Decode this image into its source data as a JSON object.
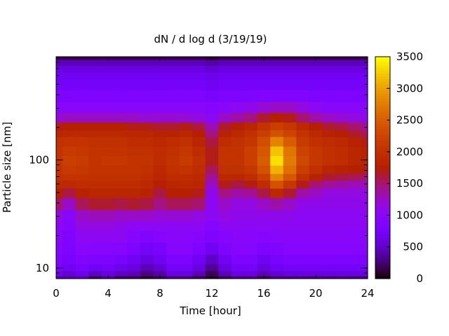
{
  "chart_data": {
    "type": "heatmap",
    "title": "dN / d log d (3/19/19)",
    "xlabel": "Time [hour]",
    "ylabel": "Particle size [nm]",
    "x_range": [
      0,
      24
    ],
    "y_range": [
      8,
      900
    ],
    "y_scale": "log",
    "x_ticks": [
      0,
      4,
      8,
      12,
      16,
      20,
      24
    ],
    "x_tick_labels": [
      "0",
      "4",
      "8",
      "12",
      "16",
      "20",
      "24"
    ],
    "y_ticks": [
      10,
      100
    ],
    "y_tick_labels": [
      "10",
      "100"
    ],
    "colorbar": {
      "range": [
        0,
        3500
      ],
      "ticks": [
        0,
        500,
        1000,
        1500,
        2000,
        2500,
        3000,
        3500
      ],
      "tick_labels": [
        "0",
        "500",
        "1000",
        "1500",
        "2000",
        "2500",
        "3000",
        "3500"
      ],
      "palette": "black-blue-violet-red-orange-yellow"
    },
    "hours": [
      0,
      1,
      2,
      3,
      4,
      5,
      6,
      7,
      8,
      9,
      10,
      11,
      12,
      13,
      14,
      15,
      16,
      17,
      18,
      19,
      20,
      21,
      22,
      23,
      24
    ],
    "sizes_nm": [
      8,
      9,
      10,
      12,
      15,
      20,
      25,
      30,
      40,
      50,
      60,
      70,
      80,
      100,
      120,
      150,
      180,
      200,
      250,
      300,
      400,
      500,
      600,
      700,
      800,
      900
    ],
    "values": [
      [
        400,
        400,
        450,
        200,
        350,
        200,
        200,
        100,
        200,
        300,
        300,
        200,
        100,
        200,
        300,
        300,
        200,
        300,
        300,
        300,
        300,
        300,
        300,
        300,
        300
      ],
      [
        650,
        550,
        650,
        500,
        600,
        500,
        450,
        300,
        400,
        600,
        600,
        450,
        200,
        450,
        600,
        600,
        450,
        550,
        600,
        600,
        600,
        600,
        600,
        600,
        600
      ],
      [
        800,
        700,
        800,
        700,
        750,
        650,
        600,
        450,
        550,
        750,
        750,
        600,
        350,
        600,
        750,
        750,
        600,
        700,
        750,
        750,
        750,
        750,
        750,
        750,
        750
      ],
      [
        900,
        800,
        900,
        850,
        850,
        800,
        700,
        600,
        700,
        850,
        850,
        700,
        500,
        700,
        850,
        850,
        700,
        800,
        850,
        850,
        850,
        850,
        850,
        850,
        850
      ],
      [
        950,
        850,
        1000,
        950,
        950,
        950,
        850,
        750,
        800,
        950,
        950,
        850,
        700,
        850,
        950,
        950,
        850,
        900,
        950,
        950,
        950,
        950,
        950,
        950,
        950
      ],
      [
        1000,
        900,
        1050,
        1050,
        1050,
        1050,
        950,
        900,
        950,
        1000,
        1000,
        950,
        850,
        950,
        1000,
        1000,
        950,
        1000,
        1000,
        1000,
        1000,
        1000,
        1000,
        1000,
        1000
      ],
      [
        1050,
        950,
        1150,
        1150,
        1150,
        1100,
        1050,
        1050,
        1050,
        1050,
        1050,
        1050,
        950,
        1050,
        1050,
        1050,
        1050,
        1050,
        1050,
        1050,
        1050,
        1050,
        1050,
        1050,
        1050
      ],
      [
        1150,
        1000,
        1250,
        1300,
        1300,
        1250,
        1250,
        1250,
        1200,
        1200,
        1200,
        1150,
        1050,
        1150,
        1100,
        1100,
        1100,
        1100,
        1100,
        1050,
        1050,
        1050,
        1050,
        1050,
        1050
      ],
      [
        1500,
        1250,
        1550,
        1650,
        1650,
        1600,
        1650,
        1600,
        1450,
        1550,
        1550,
        1500,
        1050,
        1250,
        1150,
        1150,
        1250,
        1350,
        1250,
        1100,
        1100,
        1100,
        1100,
        1100,
        1100
      ],
      [
        1750,
        1600,
        1800,
        1850,
        1850,
        1850,
        1850,
        1800,
        1600,
        1750,
        1750,
        1700,
        1100,
        1450,
        1350,
        1400,
        1600,
        1900,
        1650,
        1350,
        1250,
        1150,
        1150,
        1150,
        1150
      ],
      [
        1900,
        1900,
        1950,
        1950,
        1950,
        1950,
        1950,
        1900,
        1750,
        1850,
        1900,
        1850,
        1250,
        1700,
        1600,
        1700,
        1950,
        2400,
        2100,
        1700,
        1500,
        1400,
        1350,
        1300,
        1300
      ],
      [
        2000,
        2050,
        2050,
        2000,
        2000,
        2000,
        2000,
        1950,
        1850,
        1950,
        1950,
        1900,
        1400,
        1900,
        1850,
        1950,
        2200,
        2800,
        2450,
        2000,
        1800,
        1650,
        1600,
        1550,
        1500
      ],
      [
        2050,
        2150,
        2100,
        2050,
        2050,
        2050,
        2050,
        2000,
        1900,
        2000,
        2050,
        1950,
        1550,
        2000,
        2000,
        2100,
        2400,
        3100,
        2650,
        2200,
        2000,
        1850,
        1800,
        1750,
        1700
      ],
      [
        2050,
        2200,
        2150,
        2050,
        2100,
        2100,
        2050,
        2050,
        1950,
        2050,
        2150,
        2000,
        1700,
        2050,
        2050,
        2200,
        2500,
        3350,
        2750,
        2300,
        2100,
        2000,
        1950,
        1850,
        1800
      ],
      [
        2050,
        2150,
        2100,
        2050,
        2050,
        2050,
        2000,
        2000,
        1950,
        2000,
        2100,
        1950,
        1700,
        2050,
        2050,
        2200,
        2450,
        3200,
        2700,
        2250,
        2100,
        2000,
        1950,
        1850,
        1800
      ],
      [
        2000,
        2050,
        2050,
        2000,
        2000,
        2000,
        1950,
        1950,
        1900,
        1950,
        2000,
        1850,
        1600,
        1950,
        2000,
        2100,
        2350,
        2800,
        2500,
        2150,
        2000,
        1950,
        1900,
        1800,
        1700
      ],
      [
        1850,
        1900,
        1900,
        1900,
        1900,
        1900,
        1850,
        1850,
        1800,
        1800,
        1850,
        1750,
        1450,
        1800,
        1900,
        2000,
        2200,
        2400,
        2250,
        2050,
        1900,
        1800,
        1750,
        1650,
        1550
      ],
      [
        1700,
        1750,
        1750,
        1750,
        1750,
        1750,
        1700,
        1700,
        1650,
        1650,
        1700,
        1600,
        1300,
        1650,
        1750,
        1850,
        2050,
        2200,
        2100,
        1900,
        1750,
        1650,
        1600,
        1500,
        1400
      ],
      [
        1200,
        1250,
        1250,
        1250,
        1250,
        1250,
        1250,
        1200,
        1200,
        1200,
        1200,
        1150,
        1050,
        1250,
        1350,
        1450,
        1650,
        1750,
        1700,
        1500,
        1350,
        1250,
        1200,
        1150,
        1100
      ],
      [
        1000,
        1000,
        1000,
        1000,
        1000,
        1000,
        1000,
        1000,
        1000,
        1000,
        1000,
        1000,
        950,
        1000,
        1050,
        1100,
        1200,
        1250,
        1250,
        1150,
        1050,
        1000,
        1000,
        1000,
        1000
      ],
      [
        850,
        850,
        850,
        850,
        850,
        850,
        850,
        850,
        850,
        850,
        850,
        850,
        800,
        850,
        850,
        850,
        900,
        900,
        900,
        900,
        850,
        850,
        850,
        850,
        850
      ],
      [
        750,
        750,
        750,
        750,
        750,
        750,
        750,
        750,
        750,
        750,
        750,
        750,
        700,
        750,
        750,
        750,
        750,
        750,
        750,
        750,
        750,
        750,
        750,
        750,
        750
      ],
      [
        700,
        700,
        700,
        700,
        700,
        700,
        700,
        700,
        700,
        700,
        700,
        700,
        650,
        700,
        700,
        700,
        700,
        700,
        700,
        700,
        700,
        700,
        700,
        700,
        700
      ],
      [
        600,
        600,
        600,
        600,
        600,
        600,
        600,
        600,
        600,
        600,
        600,
        600,
        550,
        600,
        600,
        600,
        600,
        600,
        600,
        600,
        600,
        600,
        600,
        600,
        600
      ],
      [
        450,
        450,
        450,
        450,
        450,
        450,
        450,
        450,
        450,
        450,
        450,
        450,
        400,
        450,
        450,
        450,
        450,
        450,
        450,
        450,
        450,
        450,
        450,
        450,
        450
      ],
      [
        150,
        150,
        150,
        150,
        150,
        150,
        150,
        150,
        150,
        150,
        150,
        150,
        100,
        150,
        150,
        150,
        150,
        150,
        150,
        150,
        150,
        150,
        150,
        150,
        150
      ]
    ]
  }
}
